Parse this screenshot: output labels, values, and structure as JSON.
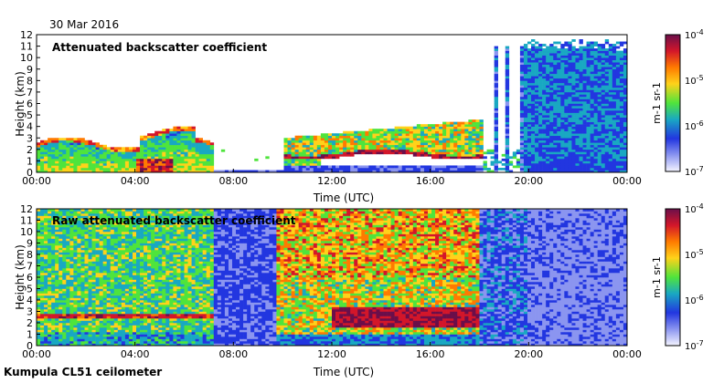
{
  "header": {
    "date": "30 Mar 2016"
  },
  "footer": {
    "station": "Kumpula CL51 ceilometer"
  },
  "colorbar": {
    "labels": [
      "10-4",
      "10-5",
      "10-6",
      "10-7"
    ],
    "unit": "m-1 sr-1",
    "colors": [
      "#6b0f4a",
      "#d3162a",
      "#ff7a00",
      "#ffd21a",
      "#4fe43c",
      "#19a8c2",
      "#2236e0",
      "#8b95f0",
      "#f4f4ff"
    ]
  },
  "chart_data": [
    {
      "type": "heatmap",
      "title": "Attenuated backscatter coefficient",
      "xlabel": "Time (UTC)",
      "ylabel": "Height (km)",
      "x_ticks": [
        "00:00",
        "04:00",
        "08:00",
        "12:00",
        "16:00",
        "20:00",
        "00:00"
      ],
      "y_ticks": [
        0,
        1,
        2,
        3,
        4,
        5,
        6,
        7,
        8,
        9,
        10,
        11,
        12
      ],
      "xlim_hours": [
        0,
        24
      ],
      "ylim": [
        0,
        12
      ],
      "color_scale": "log10 backscatter, 1e-7 to 1e-4 m-1 sr-1",
      "features": [
        {
          "name": "boundary layer",
          "start_h": 0,
          "end_h": 7.2,
          "top_km": 3.0
        },
        {
          "name": "cloud layer",
          "start_h": 12,
          "end_h": 18,
          "base_km": 1.5,
          "top_km": 3.5
        },
        {
          "name": "precipitation curtain",
          "start_h": 18.5,
          "end_h": 24,
          "top_km": 11
        }
      ]
    },
    {
      "type": "heatmap",
      "title": "Raw attenuated backscatter coefficient",
      "xlabel": "Time (UTC)",
      "ylabel": "Height (km)",
      "x_ticks": [
        "00:00",
        "04:00",
        "08:00",
        "12:00",
        "16:00",
        "20:00",
        "00:00"
      ],
      "y_ticks": [
        0,
        1,
        2,
        3,
        4,
        5,
        6,
        7,
        8,
        9,
        10,
        11,
        12
      ],
      "xlim_hours": [
        0,
        24
      ],
      "ylim": [
        0,
        12
      ],
      "color_scale": "log10 backscatter, 1e-7 to 1e-4 m-1 sr-1",
      "features": [
        {
          "name": "daytime noise",
          "start_h": 0,
          "end_h": 7.2
        },
        {
          "name": "daytime noise (strong)",
          "start_h": 9.8,
          "end_h": 18
        }
      ]
    }
  ]
}
